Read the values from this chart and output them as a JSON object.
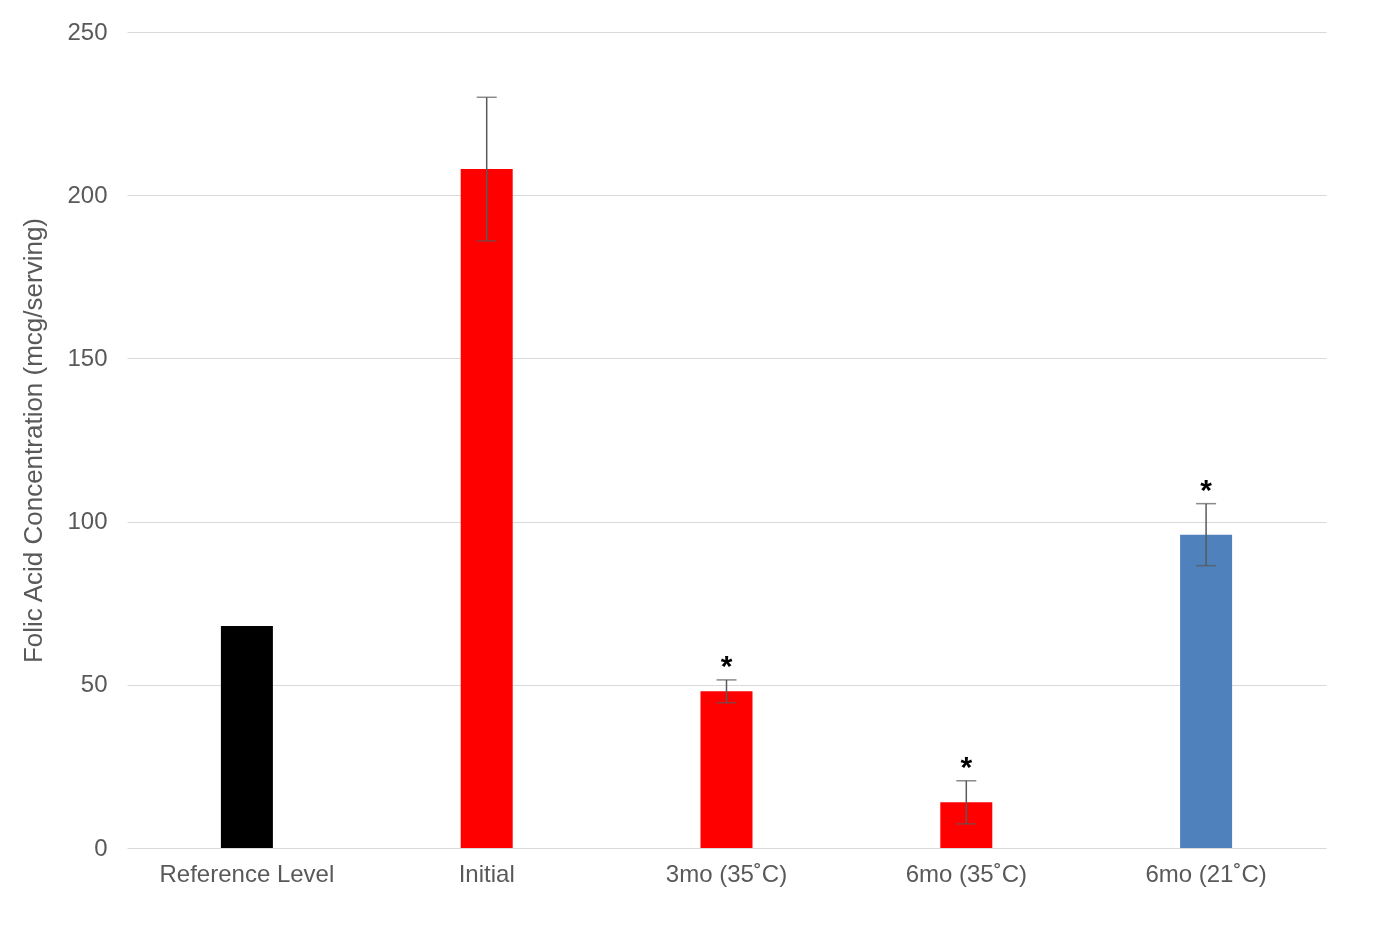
{
  "chart_data": {
    "type": "bar",
    "ylabel": "Folic Acid Concentration (mcg/serving)",
    "categories": [
      "Reference Level",
      "Initial",
      "3mo (35˚C)",
      "6mo (35˚C)",
      "6mo (21˚C)"
    ],
    "values": [
      68,
      208,
      48,
      14,
      96
    ],
    "colors": [
      "#000000",
      "#ff0000",
      "#ff0000",
      "#ff0000",
      "#4f81bd"
    ],
    "errors": [
      null,
      22,
      3.5,
      6.6,
      9.5
    ],
    "ylim": [
      0,
      250
    ],
    "yticks": [
      0,
      50,
      100,
      150,
      200,
      250
    ],
    "grid": "y",
    "annotations": [
      {
        "text": "*",
        "x": "3mo (35˚C)",
        "y": 51.5
      },
      {
        "text": "*",
        "x": "6mo (35˚C)",
        "y": 20.6
      },
      {
        "text": "*",
        "x": "6mo (21˚C)",
        "y": 105.5
      }
    ]
  }
}
